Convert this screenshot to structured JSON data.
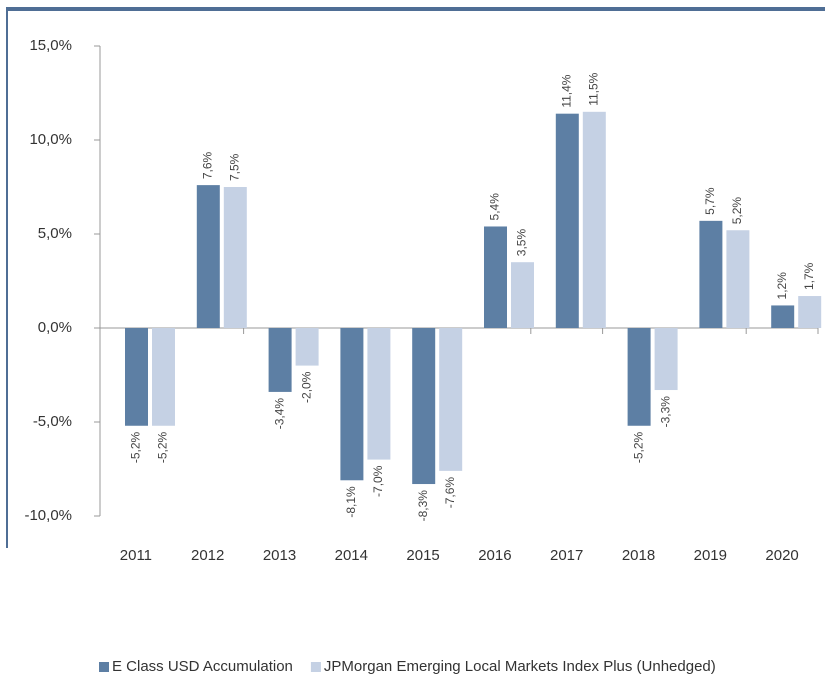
{
  "chart_data": {
    "type": "bar",
    "categories": [
      "2011",
      "2012",
      "2013",
      "2014",
      "2015",
      "2016",
      "2017",
      "2018",
      "2019",
      "2020"
    ],
    "series": [
      {
        "name": "E Class USD Accumulation",
        "color": "#5d7fa4",
        "values": [
          -5.2,
          7.6,
          -3.4,
          -8.1,
          -8.3,
          5.4,
          11.4,
          -5.2,
          5.7,
          1.2
        ],
        "value_labels": [
          "-5,2%",
          "7,6%",
          "-3,4%",
          "-8,1%",
          "-8,3%",
          "5,4%",
          "11,4%",
          "-5,2%",
          "5,7%",
          "1,2%"
        ]
      },
      {
        "name": "JPMorgan Emerging Local Markets Index Plus (Unhedged)",
        "color": "#c5d1e4",
        "values": [
          -5.2,
          7.5,
          -2.0,
          -7.0,
          -7.6,
          3.5,
          11.5,
          -3.3,
          5.2,
          1.7
        ],
        "value_labels": [
          "-5,2%",
          "7,5%",
          "-2,0%",
          "-7,0%",
          "-7,6%",
          "3,5%",
          "11,5%",
          "-3,3%",
          "5,2%",
          "1,7%"
        ]
      }
    ],
    "ylim": [
      -10,
      15
    ],
    "yticks": [
      {
        "value": -10,
        "label": "-10,0%"
      },
      {
        "value": -5,
        "label": "-5,0%"
      },
      {
        "value": 0,
        "label": "0,0%"
      },
      {
        "value": 5,
        "label": "5,0%"
      },
      {
        "value": 10,
        "label": "10,0%"
      },
      {
        "value": 15,
        "label": "15,0%"
      }
    ],
    "grid": false,
    "legend": "bottom"
  }
}
